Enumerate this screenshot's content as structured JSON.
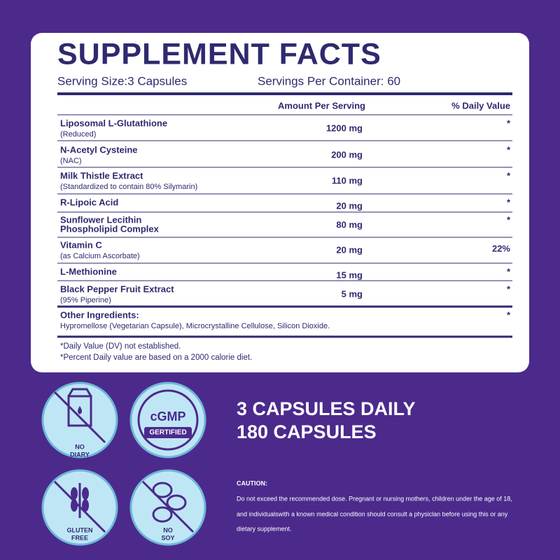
{
  "header": {
    "title": "SUPPLEMENT FACTS",
    "serving_size": "Serving Size:3 Capsules",
    "servings_per_container": "Servings Per Container: 60"
  },
  "table": {
    "columns": [
      "Amount Per Serving",
      "% Daily Value"
    ],
    "rows": [
      {
        "name": [
          "Liposomal L-Glutathione"
        ],
        "detail": "(Reduced)",
        "amount": "1200 mg",
        "daily_value": "*"
      },
      {
        "name": [
          "N-Acetyl Cysteine"
        ],
        "detail": "(NAC)",
        "amount": "200 mg",
        "daily_value": "*"
      },
      {
        "name": [
          "Milk Thistle Extract"
        ],
        "detail": "(Standardized to contain 80% Silymarin)",
        "amount": "110 mg",
        "daily_value": "*"
      },
      {
        "name": [
          "R-Lipoic Acid"
        ],
        "amount": "20 mg",
        "daily_value": "*"
      },
      {
        "name": [
          "Sunflower Lecithin",
          "Phospholipid Complex"
        ],
        "amount": "80 mg",
        "daily_value": "*"
      },
      {
        "name": [
          "Vitamin C"
        ],
        "detail": "(as Calcium Ascorbate)",
        "amount": "20 mg",
        "daily_value": "22%"
      },
      {
        "name": [
          "L-Methionine"
        ],
        "amount": "15 mg",
        "daily_value": "*"
      },
      {
        "name": [
          "Black Pepper Fruit Extract"
        ],
        "detail": "(95% Piperine)",
        "amount": "5 mg",
        "daily_value": "*"
      }
    ]
  },
  "other_ingredients": {
    "label": "Other Ingredients:",
    "text": "Hypromellose (Vegetarian Capsule), Microcrystalline Cellulose, Silicon Dioxide.",
    "daily_value": "*"
  },
  "footnotes": [
    "*Daily Value (DV) not established.",
    "*Percent Daily value are based on a 2000 calorie diet."
  ],
  "badges": [
    {
      "lines": [
        "NO",
        "DIARY"
      ]
    },
    {
      "lines": [
        "cGMP",
        "GERTIFIED"
      ]
    },
    {
      "lines": [
        "GLUTEN",
        "FREE"
      ]
    },
    {
      "lines": [
        "NO",
        "SOY"
      ]
    }
  ],
  "dosage": [
    "3 CAPSULES DAILY",
    "180 CAPSULES"
  ],
  "caution": {
    "title": "CAUTION:",
    "lines": [
      "Do not exceed the recommended dose. Pregnant or nursing mothers, children under the age of 18,",
      "and individualswith a known medical condition should consult a physiclan before using this or any",
      "dietary supplement."
    ]
  }
}
